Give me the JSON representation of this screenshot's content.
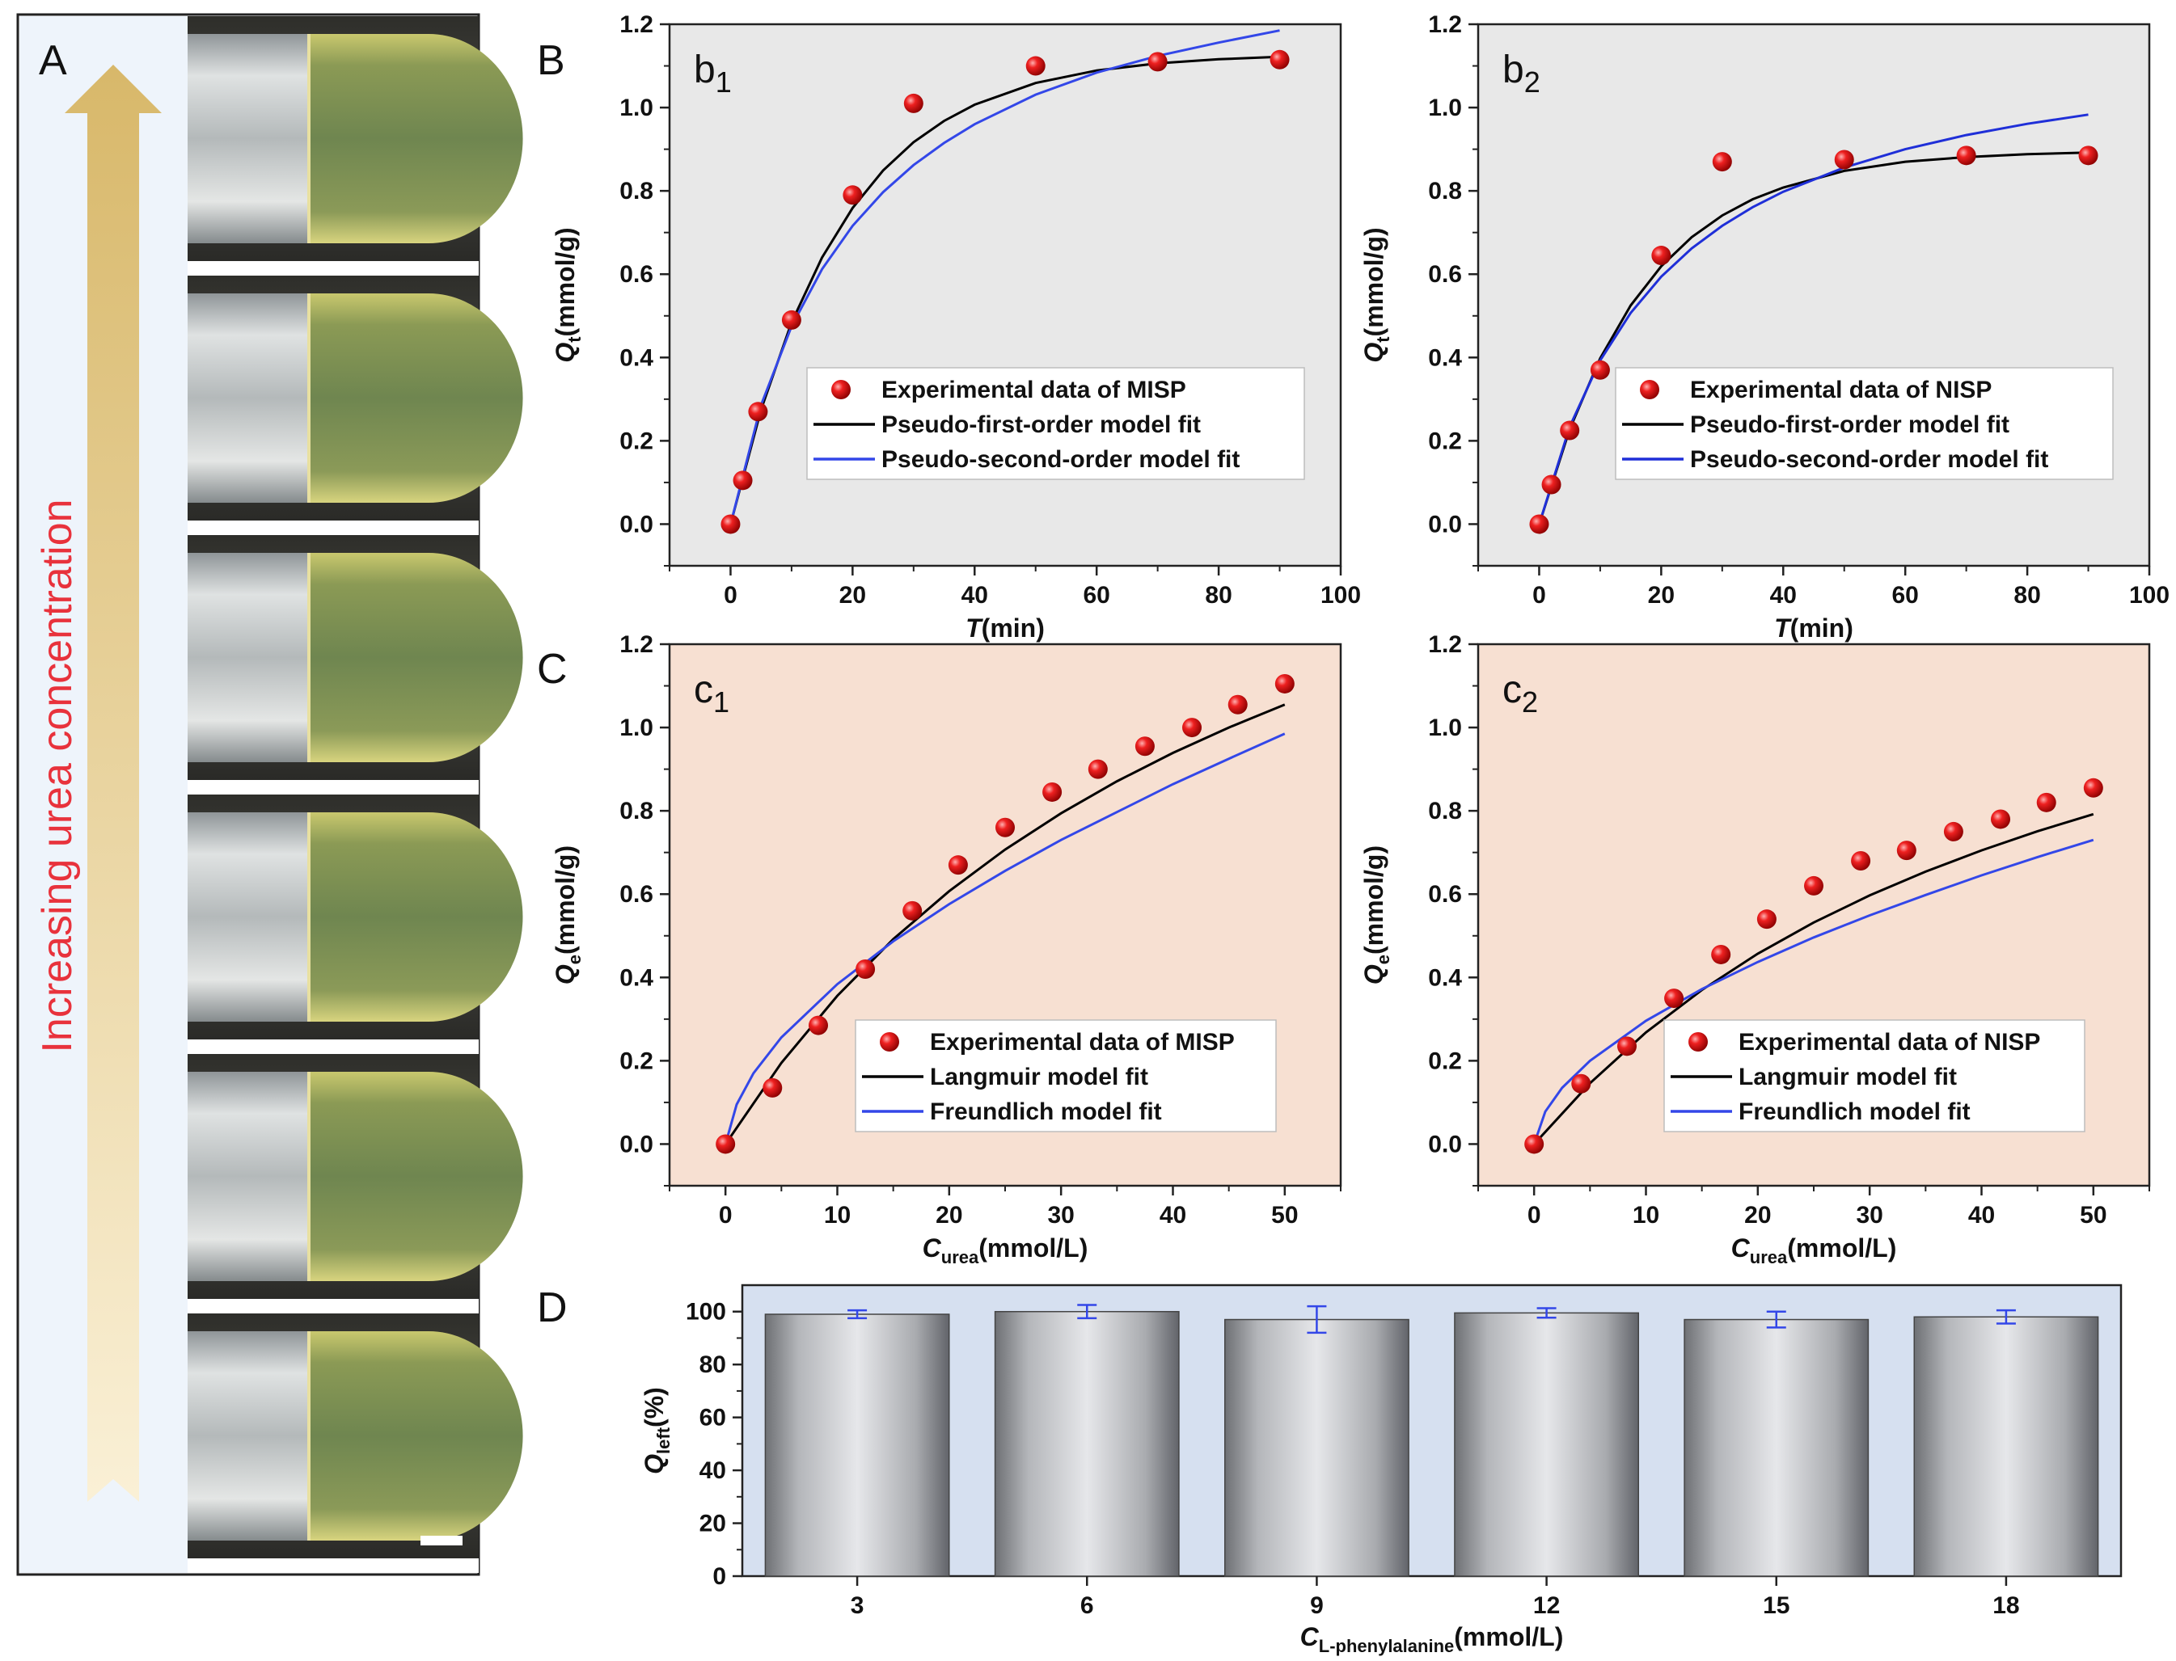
{
  "panel_labels": {
    "a": "A",
    "b": "B",
    "c": "C",
    "d": "D"
  },
  "panel_a": {
    "arrow_label": "Increasing urea concentration",
    "photo_count": 6
  },
  "chart_data": [
    {
      "id": "b1",
      "type": "scatter",
      "sub_letter": "b",
      "sub_index": "1",
      "xlabel_main": "T",
      "xlabel_unit": "(min)",
      "ylabel_main": "Q",
      "ylabel_sub": "t",
      "ylabel_unit": "(mmol/g)",
      "xlim": [
        -10,
        100
      ],
      "ylim": [
        -0.1,
        1.2
      ],
      "xticks": [
        0,
        20,
        40,
        60,
        80,
        100
      ],
      "yticks": [
        0.0,
        0.2,
        0.4,
        0.6,
        0.8,
        1.0,
        1.2
      ],
      "bg": "#e8e8e8",
      "series": [
        {
          "name": "Experimental data of MISP",
          "kind": "points",
          "color": "#e8121b",
          "x": [
            0,
            2,
            4.5,
            10,
            20,
            30,
            50,
            70,
            90
          ],
          "y": [
            0.0,
            0.105,
            0.27,
            0.49,
            0.79,
            1.01,
            1.1,
            1.11,
            1.115
          ]
        },
        {
          "name": "Pseudo-first-order model fit",
          "kind": "line",
          "color": "#000000",
          "x": [
            0,
            5,
            10,
            15,
            20,
            25,
            30,
            35,
            40,
            50,
            60,
            70,
            80,
            90
          ],
          "y": [
            0.0,
            0.275,
            0.484,
            0.64,
            0.759,
            0.849,
            0.917,
            0.968,
            1.007,
            1.059,
            1.089,
            1.106,
            1.116,
            1.122
          ]
        },
        {
          "name": "Pseudo-second-order model fit",
          "kind": "line",
          "color": "#3347e8",
          "x": [
            0,
            5,
            10,
            15,
            20,
            25,
            30,
            35,
            40,
            50,
            60,
            70,
            80,
            90
          ],
          "y": [
            0.0,
            0.286,
            0.475,
            0.612,
            0.716,
            0.797,
            0.862,
            0.915,
            0.96,
            1.031,
            1.084,
            1.124,
            1.156,
            1.185
          ]
        }
      ]
    },
    {
      "id": "b2",
      "type": "scatter",
      "sub_letter": "b",
      "sub_index": "2",
      "xlabel_main": "T",
      "xlabel_unit": "(min)",
      "ylabel_main": "Q",
      "ylabel_sub": "t",
      "ylabel_unit": "(mmol/g)",
      "xlim": [
        -10,
        100
      ],
      "ylim": [
        -0.1,
        1.2
      ],
      "xticks": [
        0,
        20,
        40,
        60,
        80,
        100
      ],
      "yticks": [
        0.0,
        0.2,
        0.4,
        0.6,
        0.8,
        1.0,
        1.2
      ],
      "bg": "#e8e8e8",
      "series": [
        {
          "name": "Experimental data of NISP",
          "kind": "points",
          "color": "#e8121b",
          "x": [
            0,
            2,
            5,
            10,
            20,
            30,
            50,
            70,
            90
          ],
          "y": [
            0.0,
            0.095,
            0.225,
            0.37,
            0.645,
            0.87,
            0.875,
            0.885,
            0.885
          ]
        },
        {
          "name": "Pseudo-first-order model fit",
          "kind": "line",
          "color": "#000000",
          "x": [
            0,
            5,
            10,
            15,
            20,
            25,
            30,
            35,
            40,
            50,
            60,
            70,
            80,
            90
          ],
          "y": [
            0.0,
            0.228,
            0.398,
            0.525,
            0.619,
            0.689,
            0.741,
            0.78,
            0.808,
            0.848,
            0.87,
            0.881,
            0.888,
            0.892
          ]
        },
        {
          "name": "Pseudo-second-order model fit",
          "kind": "line",
          "color": "#1f2fd8",
          "x": [
            0,
            5,
            10,
            15,
            20,
            25,
            30,
            35,
            40,
            50,
            60,
            70,
            80,
            90
          ],
          "y": [
            0.0,
            0.234,
            0.393,
            0.507,
            0.594,
            0.662,
            0.716,
            0.761,
            0.798,
            0.856,
            0.9,
            0.934,
            0.961,
            0.983
          ]
        }
      ]
    },
    {
      "id": "c1",
      "type": "scatter",
      "sub_letter": "c",
      "sub_index": "1",
      "xlabel_main": "C",
      "xlabel_sub": "urea",
      "xlabel_unit": "(mmol/L)",
      "ylabel_main": "Q",
      "ylabel_sub": "e",
      "ylabel_unit": "(mmol/g)",
      "xlim": [
        -5,
        55
      ],
      "ylim": [
        -0.1,
        1.2
      ],
      "xticks": [
        0,
        10,
        20,
        30,
        40,
        50
      ],
      "yticks": [
        0.0,
        0.2,
        0.4,
        0.6,
        0.8,
        1.0,
        1.2
      ],
      "bg": "#f7e0d2",
      "series": [
        {
          "name": "Experimental data of MISP",
          "kind": "points",
          "color": "#e8121b",
          "x": [
            0,
            4.2,
            8.3,
            12.5,
            16.7,
            20.8,
            25,
            29.2,
            33.3,
            37.5,
            41.7,
            45.8,
            50
          ],
          "y": [
            0.0,
            0.135,
            0.285,
            0.42,
            0.56,
            0.67,
            0.76,
            0.845,
            0.9,
            0.955,
            1.0,
            1.055,
            1.105
          ]
        },
        {
          "name": "Langmuir model fit",
          "kind": "line",
          "color": "#000000",
          "x": [
            0,
            5,
            10,
            15,
            20,
            25,
            30,
            35,
            40,
            45,
            50
          ],
          "y": [
            0.0,
            0.195,
            0.356,
            0.492,
            0.607,
            0.707,
            0.794,
            0.871,
            0.939,
            1.0,
            1.055
          ]
        },
        {
          "name": "Freundlich model fit",
          "kind": "line",
          "color": "#3347e8",
          "x": [
            0,
            1,
            2.5,
            5,
            10,
            15,
            20,
            25,
            30,
            35,
            40,
            45,
            50
          ],
          "y": [
            0.0,
            0.095,
            0.17,
            0.256,
            0.384,
            0.487,
            0.576,
            0.656,
            0.73,
            0.797,
            0.864,
            0.925,
            0.985
          ]
        }
      ]
    },
    {
      "id": "c2",
      "type": "scatter",
      "sub_letter": "c",
      "sub_index": "2",
      "xlabel_main": "C",
      "xlabel_sub": "urea",
      "xlabel_unit": "(mmol/L)",
      "ylabel_main": "Q",
      "ylabel_sub": "e",
      "ylabel_unit": "(mmol/g)",
      "xlim": [
        -5,
        55
      ],
      "ylim": [
        -0.1,
        1.2
      ],
      "xticks": [
        0,
        10,
        20,
        30,
        40,
        50
      ],
      "yticks": [
        0.0,
        0.2,
        0.4,
        0.6,
        0.8,
        1.0,
        1.2
      ],
      "bg": "#f7e0d2",
      "series": [
        {
          "name": "Experimental data of NISP",
          "kind": "points",
          "color": "#e8121b",
          "x": [
            0,
            4.2,
            8.3,
            12.5,
            16.7,
            20.8,
            25,
            29.2,
            33.3,
            37.5,
            41.7,
            45.8,
            50
          ],
          "y": [
            0.0,
            0.145,
            0.235,
            0.35,
            0.455,
            0.54,
            0.62,
            0.68,
            0.705,
            0.75,
            0.78,
            0.82,
            0.855
          ]
        },
        {
          "name": "Langmuir model fit",
          "kind": "line",
          "color": "#000000",
          "x": [
            0,
            5,
            10,
            15,
            20,
            25,
            30,
            35,
            40,
            45,
            50
          ],
          "y": [
            0.0,
            0.146,
            0.268,
            0.37,
            0.457,
            0.532,
            0.597,
            0.654,
            0.705,
            0.751,
            0.792
          ]
        },
        {
          "name": "Freundlich model fit",
          "kind": "line",
          "color": "#3347e8",
          "x": [
            0,
            1,
            2.5,
            5,
            10,
            15,
            20,
            25,
            30,
            35,
            40,
            45,
            50
          ],
          "y": [
            0.0,
            0.078,
            0.135,
            0.2,
            0.296,
            0.372,
            0.437,
            0.496,
            0.549,
            0.598,
            0.645,
            0.689,
            0.73
          ]
        }
      ]
    },
    {
      "id": "d",
      "type": "bar",
      "categories": [
        "3",
        "6",
        "9",
        "12",
        "15",
        "18"
      ],
      "values": [
        99,
        100,
        97,
        99.5,
        97,
        98
      ],
      "errors": [
        1.5,
        2.5,
        5,
        1.8,
        3,
        2.5
      ],
      "ylim": [
        0,
        110
      ],
      "yticks": [
        0,
        20,
        40,
        60,
        80,
        100
      ],
      "xlabel_main": "C",
      "xlabel_sub": "L-phenylalanine",
      "xlabel_unit": "(mmol/L)",
      "ylabel_main": "Q",
      "ylabel_sub": "left",
      "ylabel_unit": "(%)",
      "bg": "#d6e0f0",
      "error_color": "#3347e8"
    }
  ]
}
